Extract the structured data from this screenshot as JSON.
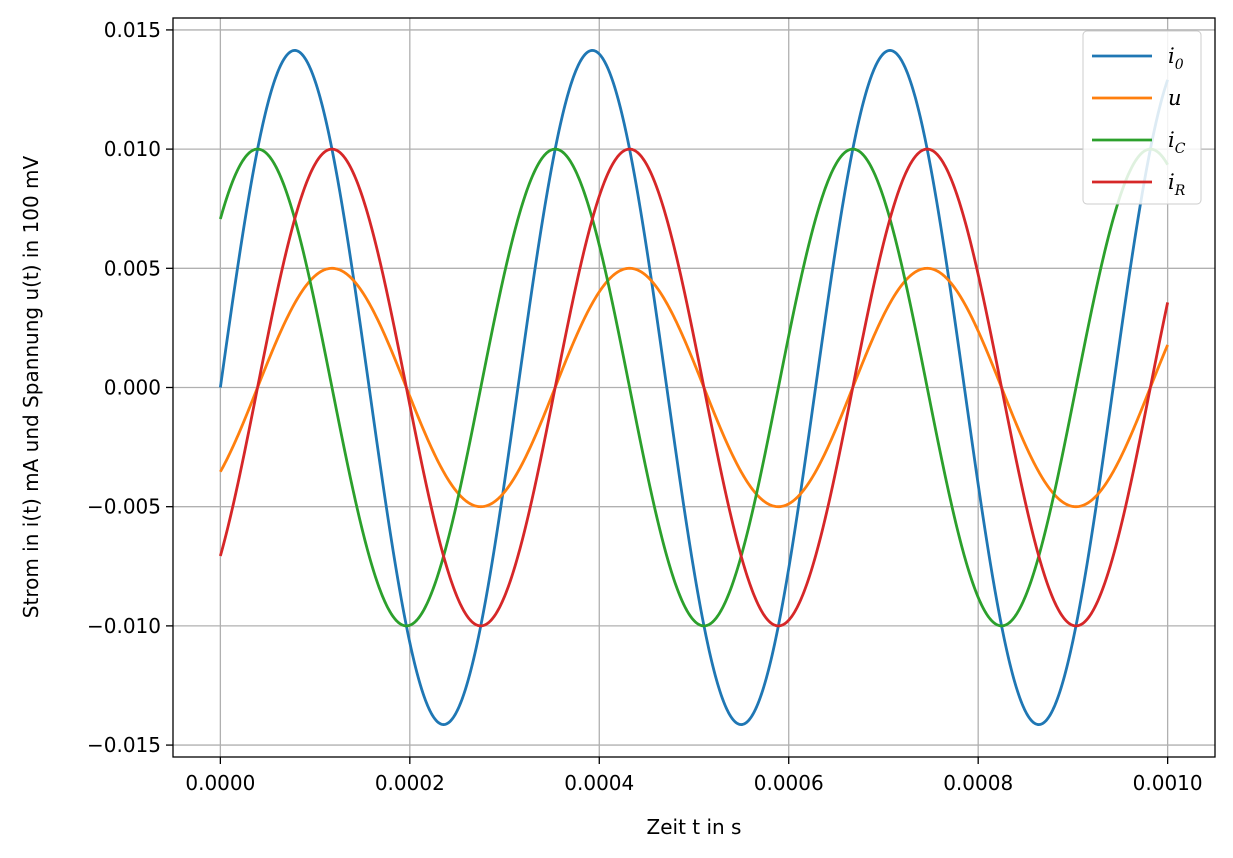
{
  "chart_data": {
    "type": "line",
    "title": "",
    "xlabel": "Zeit t in s",
    "ylabel": "Strom in i(t) mA und Spannung u(t) in 100 mV",
    "xlim": [
      -5e-05,
      0.00105
    ],
    "ylim": [
      -0.0155,
      0.0155
    ],
    "xticks": [
      0,
      0.0002,
      0.0004,
      0.0006,
      0.0008,
      0.001
    ],
    "xtick_labels": [
      "0.0000",
      "0.0002",
      "0.0004",
      "0.0006",
      "0.0008",
      "0.0010"
    ],
    "yticks": [
      -0.015,
      -0.01,
      -0.005,
      0,
      0.005,
      0.01,
      0.015
    ],
    "ytick_labels": [
      "−0.015",
      "−0.010",
      "−0.005",
      "0.000",
      "0.005",
      "0.010",
      "0.015"
    ],
    "grid": true,
    "legend_position": "top-right",
    "series": [
      {
        "name": "i0",
        "label_main": "i",
        "label_sub": "0",
        "color": "#1f77b4",
        "amplitude": 0.01414,
        "frequency_hz": 3183,
        "phase_rad": 0.0
      },
      {
        "name": "u",
        "label_main": "u",
        "label_sub": "",
        "color": "#ff7f0e",
        "amplitude": 0.005,
        "frequency_hz": 3183,
        "phase_rad": -0.785
      },
      {
        "name": "iC",
        "label_main": "i",
        "label_sub": "C",
        "color": "#2ca02c",
        "amplitude": 0.01,
        "frequency_hz": 3183,
        "phase_rad": 0.785
      },
      {
        "name": "iR",
        "label_main": "i",
        "label_sub": "R",
        "color": "#d62728",
        "amplitude": 0.01,
        "frequency_hz": 3183,
        "phase_rad": -0.785
      }
    ],
    "x_range": [
      0,
      0.001
    ]
  }
}
